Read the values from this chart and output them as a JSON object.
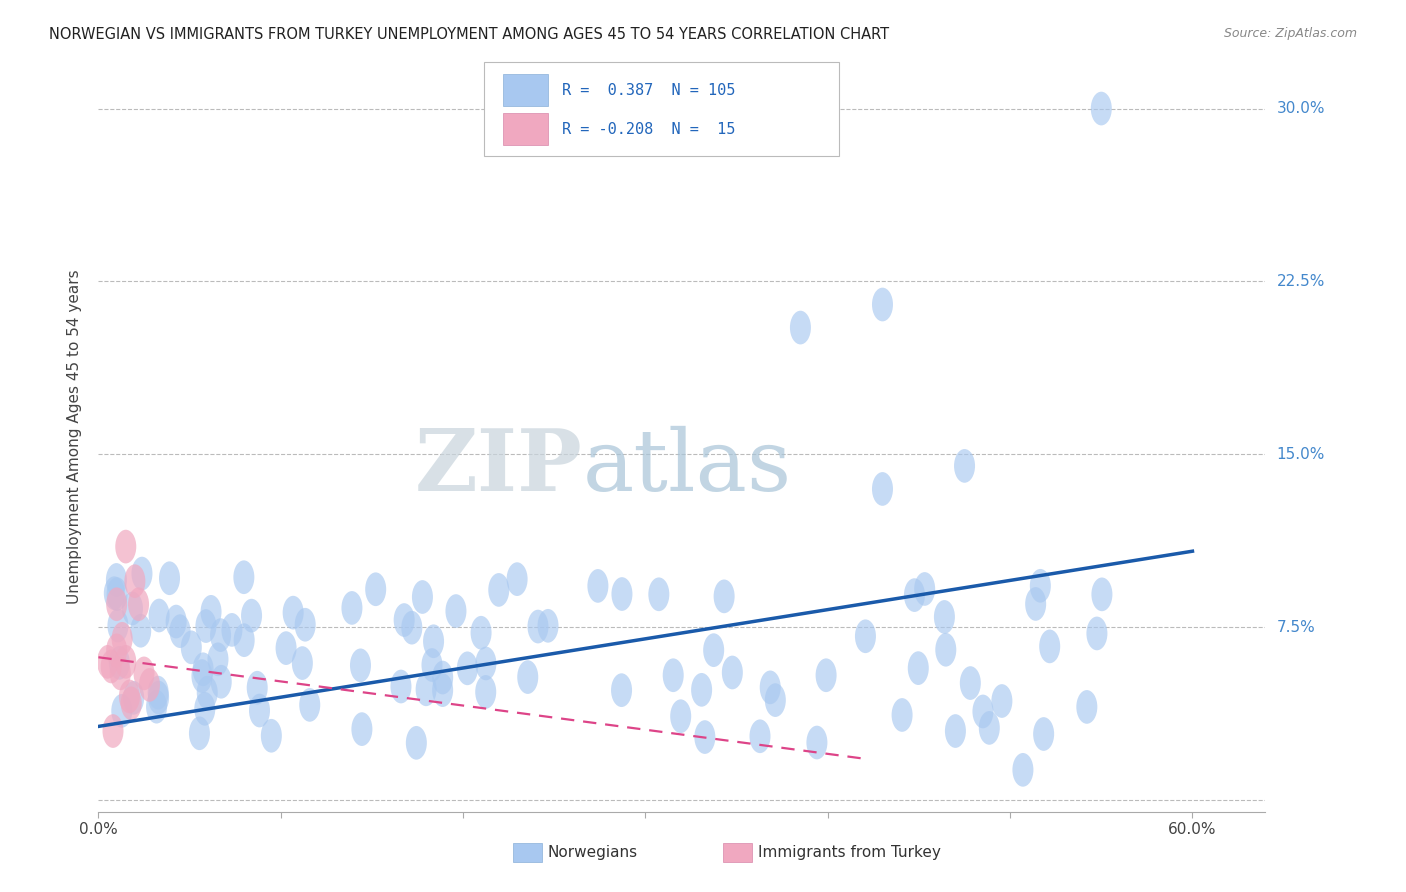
{
  "title": "NORWEGIAN VS IMMIGRANTS FROM TURKEY UNEMPLOYMENT AMONG AGES 45 TO 54 YEARS CORRELATION CHART",
  "source": "Source: ZipAtlas.com",
  "ylabel": "Unemployment Among Ages 45 to 54 years",
  "xlim": [
    0.0,
    0.64
  ],
  "ylim": [
    -0.005,
    0.32
  ],
  "xtick_positions": [
    0.0,
    0.1,
    0.2,
    0.3,
    0.4,
    0.5,
    0.6
  ],
  "xticklabels": [
    "0.0%",
    "",
    "",
    "",
    "",
    "",
    "60.0%"
  ],
  "ytick_positions": [
    0.0,
    0.075,
    0.15,
    0.225,
    0.3
  ],
  "ytick_labels_right": [
    "",
    "7.5%",
    "15.0%",
    "22.5%",
    "30.0%"
  ],
  "watermark_zip": "ZIP",
  "watermark_atlas": "atlas",
  "blue_color": "#a8c8f0",
  "blue_line_color": "#1a5aaa",
  "pink_color": "#f0a8c0",
  "pink_line_color": "#dd4488",
  "background_color": "#ffffff",
  "grid_color": "#bbbbbb",
  "right_label_color": "#4488cc",
  "blue_line_start_y": 0.032,
  "blue_line_end_y": 0.108,
  "pink_line_start_y": 0.062,
  "pink_line_end_y": 0.018,
  "pink_line_end_x": 0.42
}
